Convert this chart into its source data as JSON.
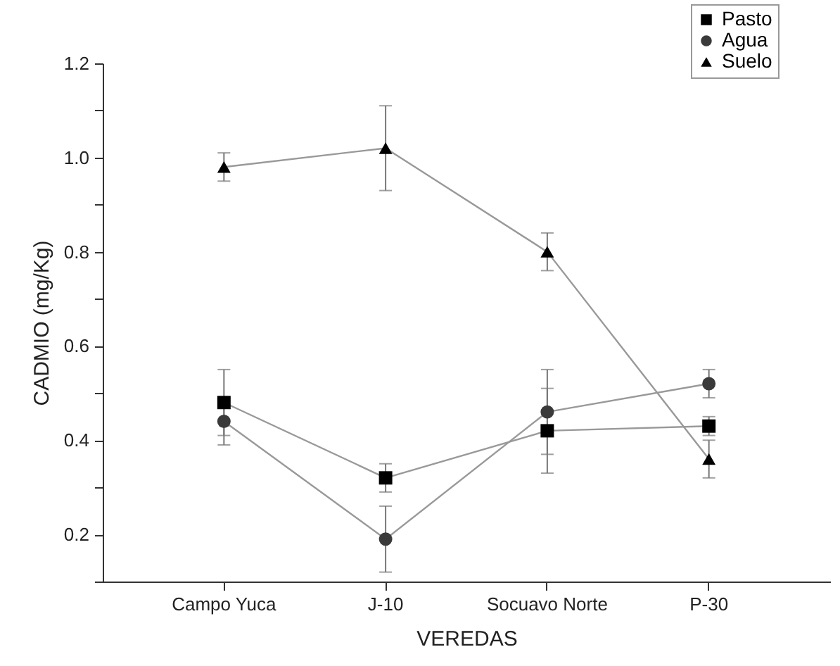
{
  "chart_data": {
    "type": "line",
    "xlabel": "VEREDAS",
    "ylabel": "CADMIO (mg/Kg)",
    "categories": [
      "Campo Yuca",
      "J-10",
      "Socuavo Norte",
      "P-30"
    ],
    "ylim": [
      0.1,
      1.2
    ],
    "yticks": [
      {
        "value": 0.1,
        "label": null
      },
      0.2,
      {
        "value": 0.3,
        "label": null
      },
      0.4,
      {
        "value": 0.5,
        "label": null
      },
      0.6,
      {
        "value": 0.7,
        "label": null
      },
      0.8,
      {
        "value": 0.9,
        "label": null
      },
      {
        "value": 1.0,
        "label": "1.0"
      },
      {
        "value": 1.1,
        "label": null
      },
      1.2
    ],
    "grid": false,
    "legend": "top right",
    "series": [
      {
        "name": "Pasto",
        "color": "#000000",
        "marker": "square",
        "values": [
          0.48,
          0.32,
          0.42,
          0.43
        ],
        "errors": [
          [
            0.41,
            0.55
          ],
          [
            0.29,
            0.35
          ],
          [
            0.33,
            0.51
          ],
          [
            0.41,
            0.45
          ]
        ]
      },
      {
        "name": "Agua",
        "color": "#3a3a3a",
        "marker": "circle",
        "values": [
          0.44,
          0.19,
          0.46,
          0.52
        ],
        "errors": [
          [
            0.39,
            0.49
          ],
          [
            0.12,
            0.26
          ],
          [
            0.37,
            0.55
          ],
          [
            0.49,
            0.55
          ]
        ]
      },
      {
        "name": "Suelo",
        "color": "#000000",
        "marker": "triangle",
        "values": [
          0.98,
          1.02,
          0.8,
          0.36
        ],
        "errors": [
          [
            0.95,
            1.01
          ],
          [
            0.93,
            1.11
          ],
          [
            0.76,
            0.84
          ],
          [
            0.32,
            0.4
          ]
        ]
      }
    ]
  }
}
